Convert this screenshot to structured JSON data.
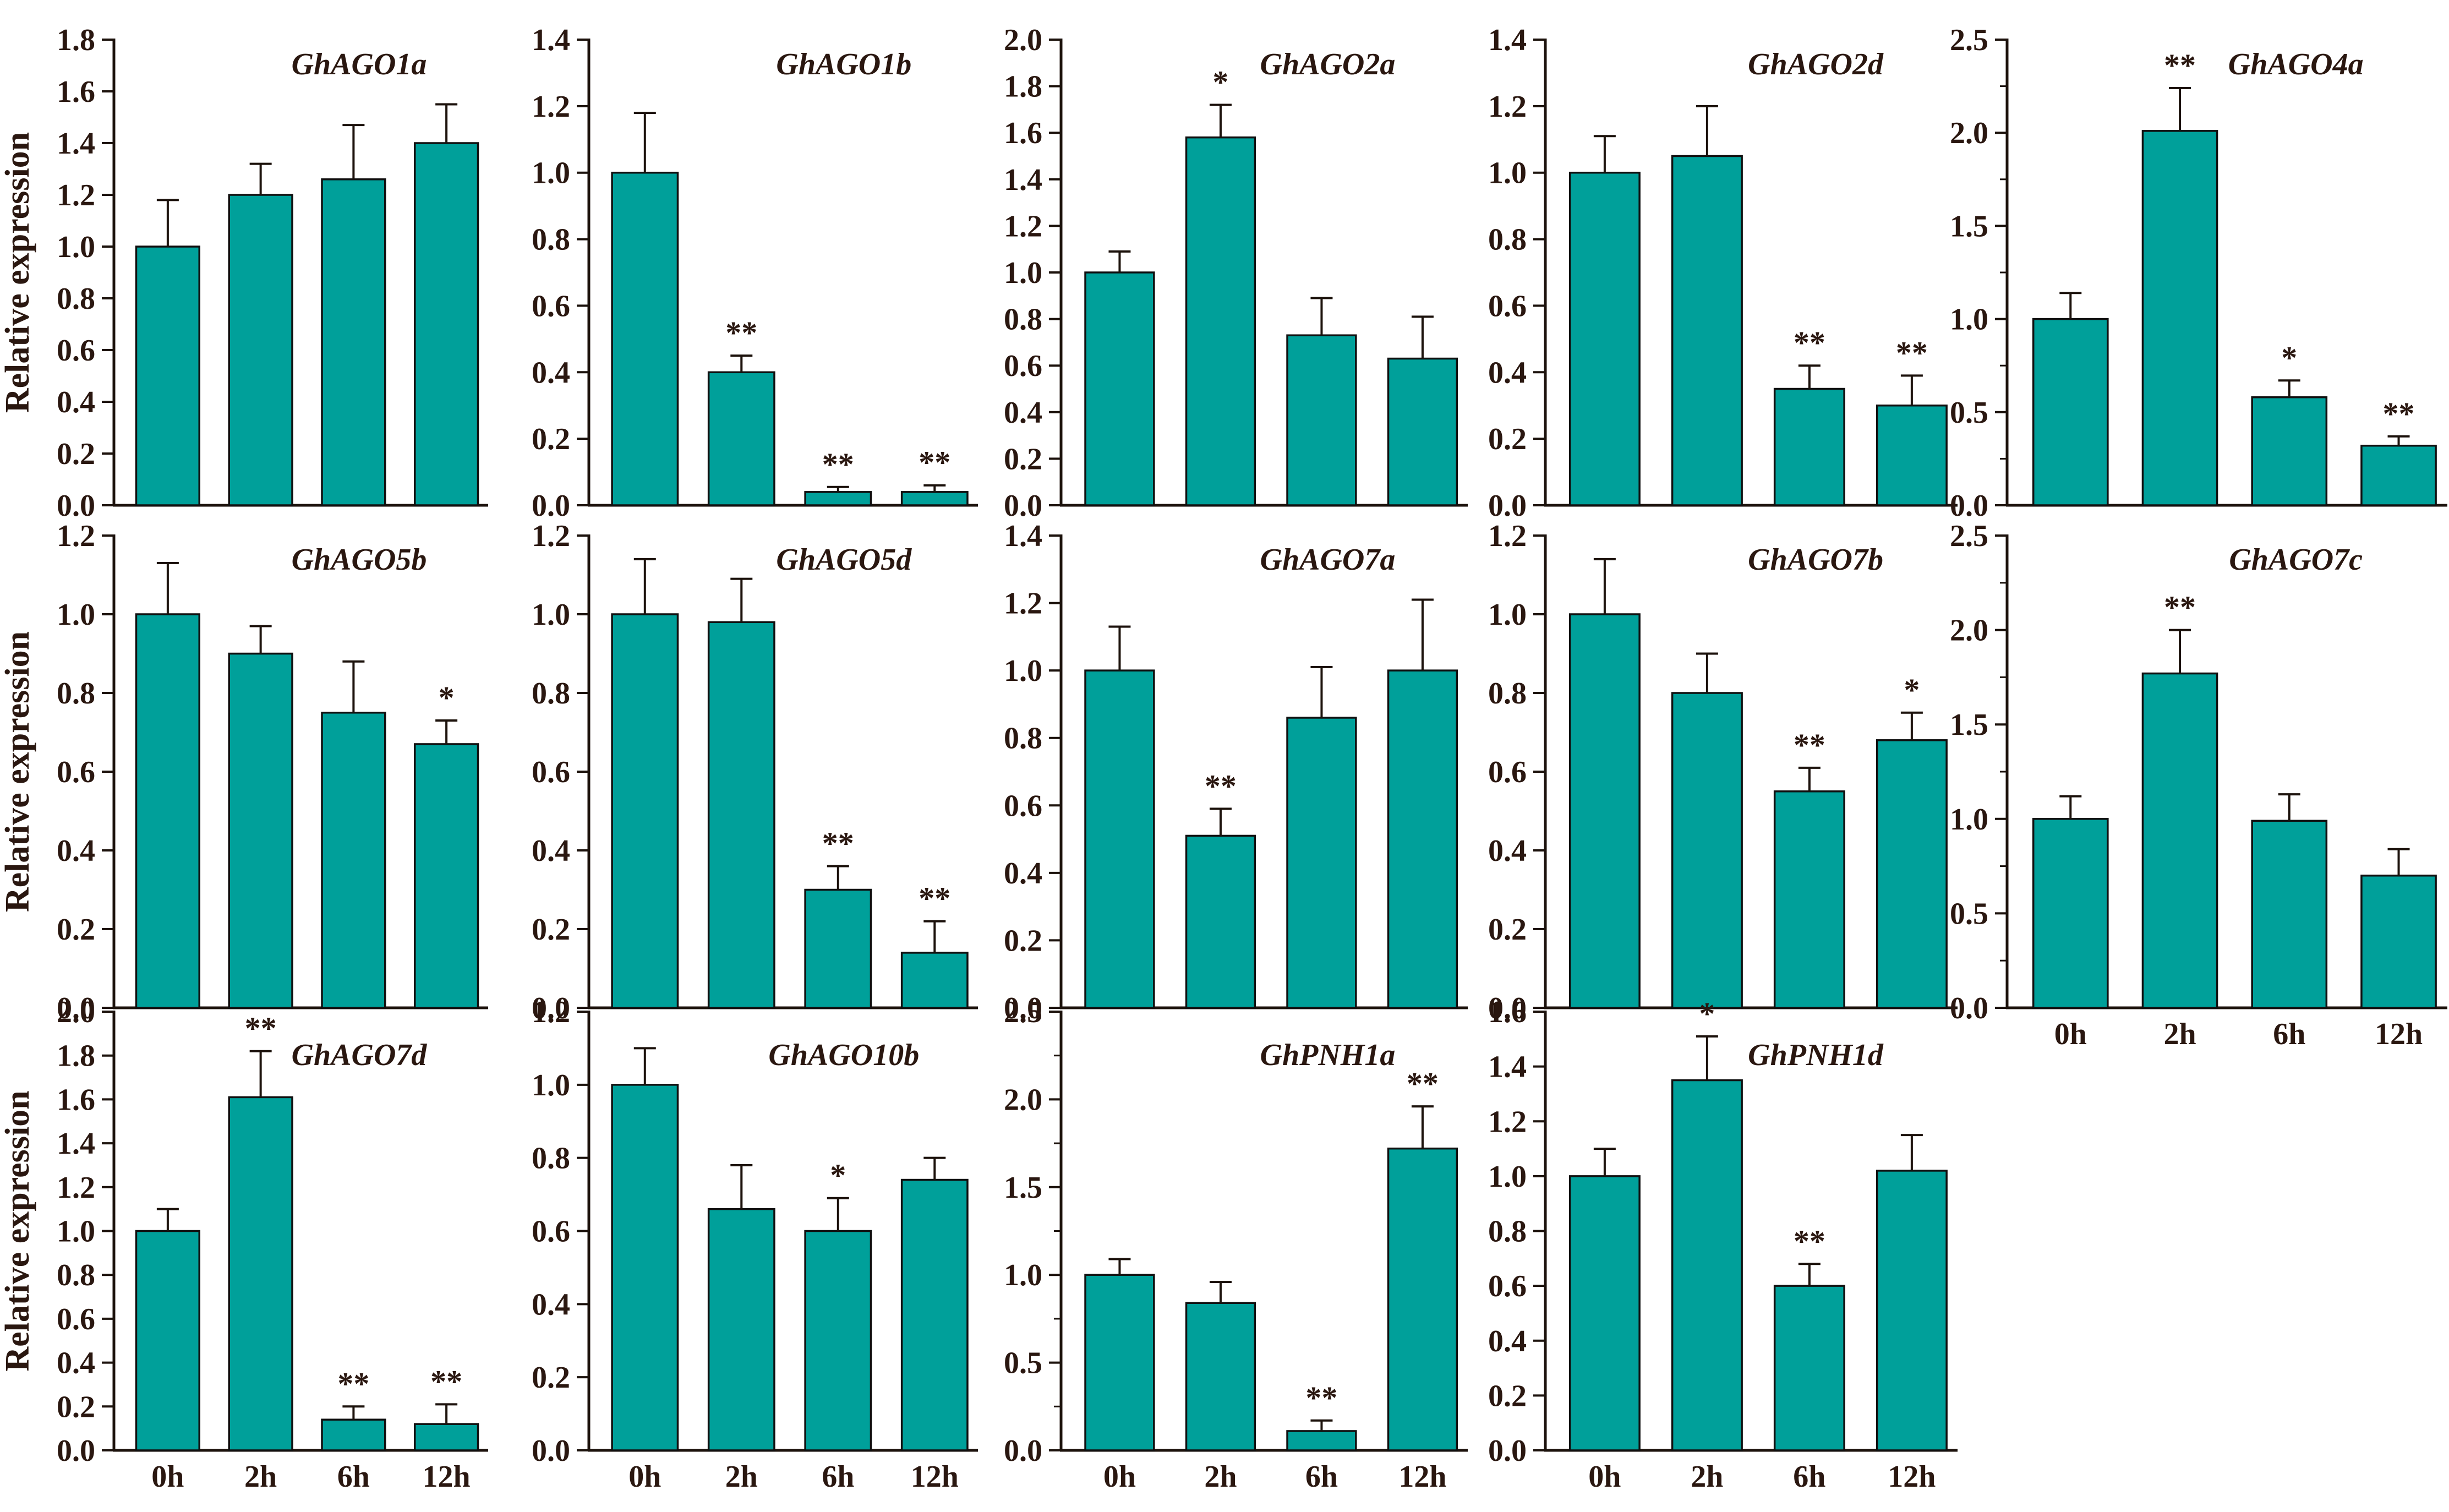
{
  "figure": {
    "ylabel": "Relative expression",
    "categories": [
      "0h",
      "2h",
      "6h",
      "12h"
    ],
    "colors": {
      "bar_fill": "#00A09A",
      "bar_outline": "#101010",
      "axis": "#1C120C",
      "text": "#2A1710"
    }
  },
  "chart_data": [
    {
      "type": "bar",
      "title": "GhAGO1a",
      "row": 0,
      "col": 0,
      "ylim": [
        0,
        1.8
      ],
      "ytick": 0.2,
      "minor_ticks": false,
      "show_xlabels": false,
      "show_ylabel": true,
      "categories": [
        "0h",
        "2h",
        "6h",
        "12h"
      ],
      "values": [
        1.0,
        1.2,
        1.26,
        1.4
      ],
      "errors": [
        0.18,
        0.12,
        0.21,
        0.15
      ],
      "sig": [
        "",
        "",
        "",
        ""
      ]
    },
    {
      "type": "bar",
      "title": "GhAGO1b",
      "row": 0,
      "col": 1,
      "ylim": [
        0,
        1.4
      ],
      "ytick": 0.2,
      "minor_ticks": false,
      "show_xlabels": false,
      "show_ylabel": false,
      "categories": [
        "0h",
        "2h",
        "6h",
        "12h"
      ],
      "values": [
        1.0,
        0.4,
        0.04,
        0.04
      ],
      "errors": [
        0.18,
        0.05,
        0.015,
        0.02
      ],
      "sig": [
        "",
        "**",
        "**",
        "**"
      ]
    },
    {
      "type": "bar",
      "title": "GhAGO2a",
      "row": 0,
      "col": 2,
      "ylim": [
        0,
        2.0
      ],
      "ytick": 0.2,
      "minor_ticks": false,
      "show_xlabels": false,
      "show_ylabel": false,
      "categories": [
        "0h",
        "2h",
        "6h",
        "12h"
      ],
      "values": [
        1.0,
        1.58,
        0.73,
        0.63
      ],
      "errors": [
        0.09,
        0.14,
        0.16,
        0.18
      ],
      "sig": [
        "",
        "*",
        "",
        ""
      ]
    },
    {
      "type": "bar",
      "title": "GhAGO2d",
      "row": 0,
      "col": 3,
      "ylim": [
        0,
        1.4
      ],
      "ytick": 0.2,
      "minor_ticks": false,
      "show_xlabels": false,
      "show_ylabel": false,
      "categories": [
        "0h",
        "2h",
        "6h",
        "12h"
      ],
      "values": [
        1.0,
        1.05,
        0.35,
        0.3
      ],
      "errors": [
        0.11,
        0.15,
        0.07,
        0.09
      ],
      "sig": [
        "",
        "",
        "**",
        "**"
      ]
    },
    {
      "type": "bar",
      "title": "GhAGO4a",
      "row": 0,
      "col": 4,
      "ylim": [
        0,
        2.5
      ],
      "ytick": 0.5,
      "minor_ticks": true,
      "show_xlabels": false,
      "show_ylabel": false,
      "categories": [
        "0h",
        "2h",
        "6h",
        "12h"
      ],
      "values": [
        1.0,
        2.01,
        0.58,
        0.32
      ],
      "errors": [
        0.14,
        0.23,
        0.09,
        0.05
      ],
      "sig": [
        "",
        "**",
        "*",
        "**"
      ]
    },
    {
      "type": "bar",
      "title": "GhAGO5b",
      "row": 1,
      "col": 0,
      "ylim": [
        0,
        1.2
      ],
      "ytick": 0.2,
      "minor_ticks": false,
      "show_xlabels": false,
      "show_ylabel": true,
      "categories": [
        "0h",
        "2h",
        "6h",
        "12h"
      ],
      "values": [
        1.0,
        0.9,
        0.75,
        0.67
      ],
      "errors": [
        0.13,
        0.07,
        0.13,
        0.06
      ],
      "sig": [
        "",
        "",
        "",
        "*"
      ]
    },
    {
      "type": "bar",
      "title": "GhAGO5d",
      "row": 1,
      "col": 1,
      "ylim": [
        0,
        1.2
      ],
      "ytick": 0.2,
      "minor_ticks": false,
      "show_xlabels": false,
      "show_ylabel": false,
      "categories": [
        "0h",
        "2h",
        "6h",
        "12h"
      ],
      "values": [
        1.0,
        0.98,
        0.3,
        0.14
      ],
      "errors": [
        0.14,
        0.11,
        0.06,
        0.08
      ],
      "sig": [
        "",
        "",
        "**",
        "**"
      ]
    },
    {
      "type": "bar",
      "title": "GhAGO7a",
      "row": 1,
      "col": 2,
      "ylim": [
        0,
        1.4
      ],
      "ytick": 0.2,
      "minor_ticks": false,
      "show_xlabels": false,
      "show_ylabel": false,
      "categories": [
        "0h",
        "2h",
        "6h",
        "12h"
      ],
      "values": [
        1.0,
        0.51,
        0.86,
        1.0
      ],
      "errors": [
        0.13,
        0.08,
        0.15,
        0.21
      ],
      "sig": [
        "",
        "**",
        "",
        ""
      ]
    },
    {
      "type": "bar",
      "title": "GhAGO7b",
      "row": 1,
      "col": 3,
      "ylim": [
        0,
        1.2
      ],
      "ytick": 0.2,
      "minor_ticks": false,
      "show_xlabels": false,
      "show_ylabel": false,
      "categories": [
        "0h",
        "2h",
        "6h",
        "12h"
      ],
      "values": [
        1.0,
        0.8,
        0.55,
        0.68
      ],
      "errors": [
        0.14,
        0.1,
        0.06,
        0.07
      ],
      "sig": [
        "",
        "",
        "**",
        "*"
      ]
    },
    {
      "type": "bar",
      "title": "GhAGO7c",
      "row": 1,
      "col": 4,
      "ylim": [
        0,
        2.5
      ],
      "ytick": 0.5,
      "minor_ticks": true,
      "show_xlabels": true,
      "show_ylabel": false,
      "categories": [
        "0h",
        "2h",
        "6h",
        "12h"
      ],
      "values": [
        1.0,
        1.77,
        0.99,
        0.7
      ],
      "errors": [
        0.12,
        0.23,
        0.14,
        0.14
      ],
      "sig": [
        "",
        "**",
        "",
        ""
      ]
    },
    {
      "type": "bar",
      "title": "GhAGO7d",
      "row": 2,
      "col": 0,
      "ylim": [
        0,
        2.0
      ],
      "ytick": 0.2,
      "minor_ticks": false,
      "show_xlabels": true,
      "show_ylabel": true,
      "categories": [
        "0h",
        "2h",
        "6h",
        "12h"
      ],
      "values": [
        1.0,
        1.61,
        0.14,
        0.12
      ],
      "errors": [
        0.1,
        0.21,
        0.06,
        0.09
      ],
      "sig": [
        "",
        "**",
        "**",
        "**"
      ]
    },
    {
      "type": "bar",
      "title": "GhAGO10b",
      "row": 2,
      "col": 1,
      "ylim": [
        0,
        1.2
      ],
      "ytick": 0.2,
      "minor_ticks": false,
      "show_xlabels": true,
      "show_ylabel": false,
      "categories": [
        "0h",
        "2h",
        "6h",
        "12h"
      ],
      "values": [
        1.0,
        0.66,
        0.6,
        0.74
      ],
      "errors": [
        0.1,
        0.12,
        0.09,
        0.06
      ],
      "sig": [
        "",
        "",
        "*",
        ""
      ]
    },
    {
      "type": "bar",
      "title": "GhPNH1a",
      "row": 2,
      "col": 2,
      "ylim": [
        0,
        2.5
      ],
      "ytick": 0.5,
      "minor_ticks": true,
      "show_xlabels": true,
      "show_ylabel": false,
      "categories": [
        "0h",
        "2h",
        "6h",
        "12h"
      ],
      "values": [
        1.0,
        0.84,
        0.11,
        1.72
      ],
      "errors": [
        0.09,
        0.12,
        0.06,
        0.24
      ],
      "sig": [
        "",
        "",
        "**",
        "**"
      ]
    },
    {
      "type": "bar",
      "title": "GhPNH1d",
      "row": 2,
      "col": 3,
      "ylim": [
        0,
        1.6
      ],
      "ytick": 0.2,
      "minor_ticks": false,
      "show_xlabels": true,
      "show_ylabel": false,
      "categories": [
        "0h",
        "2h",
        "6h",
        "12h"
      ],
      "values": [
        1.0,
        1.35,
        0.6,
        1.02
      ],
      "errors": [
        0.1,
        0.16,
        0.08,
        0.13
      ],
      "sig": [
        "",
        "*",
        "**",
        ""
      ]
    }
  ]
}
